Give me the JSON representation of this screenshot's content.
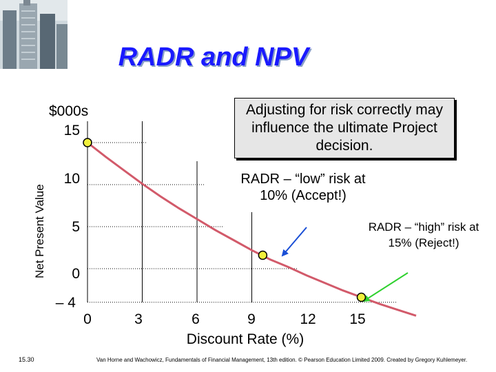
{
  "slide": {
    "title": "RADR and NPV",
    "photo_icon": "skyscraper-photo",
    "slide_number": "15.30",
    "footer": "Van Horne and Wachowicz, Fundamentals of Financial Management, 13th edition. © Pearson Education Limited 2009. Created by Gregory Kuhlemeyer."
  },
  "notes": {
    "box": "Adjusting for risk correctly may influence the ultimate Project decision.",
    "low": "RADR – “low” risk at 10% (Accept!)",
    "high": "RADR – “high” risk at 15% (Reject!)"
  },
  "chart_data": {
    "type": "line",
    "title": "",
    "xlabel": "Discount Rate (%)",
    "ylabel": "Net Present Value",
    "yunit": "$000s",
    "x_ticks": [
      "0",
      "3",
      "6",
      "9",
      "12",
      "15"
    ],
    "y_ticks": [
      "15",
      "10",
      "5",
      "0",
      "– 4"
    ],
    "xlim": [
      0,
      18
    ],
    "ylim": [
      -4,
      15
    ],
    "grid": "dotted",
    "series": [
      {
        "x": [
          0,
          1,
          2,
          3,
          4,
          5,
          6,
          7,
          8,
          9,
          10,
          11,
          12,
          13,
          14,
          15,
          16,
          17,
          18
        ],
        "values": [
          15.0,
          13.3,
          11.7,
          10.1,
          8.6,
          7.2,
          5.9,
          4.6,
          3.4,
          2.2,
          1.1,
          0.2,
          -0.8,
          -1.7,
          -2.6,
          -3.4,
          -4.2,
          -4.9,
          -5.6
        ]
      }
    ],
    "markers": [
      {
        "x": 0,
        "y": 15.0
      },
      {
        "x": 9.6,
        "y": 1.6
      },
      {
        "x": 15,
        "y": -3.4
      }
    ],
    "colors": {
      "line": "#d25a6a",
      "marker": "#f0f03c",
      "arrow": "#1a4fd6",
      "arrow_high": "#2fd12f"
    }
  }
}
